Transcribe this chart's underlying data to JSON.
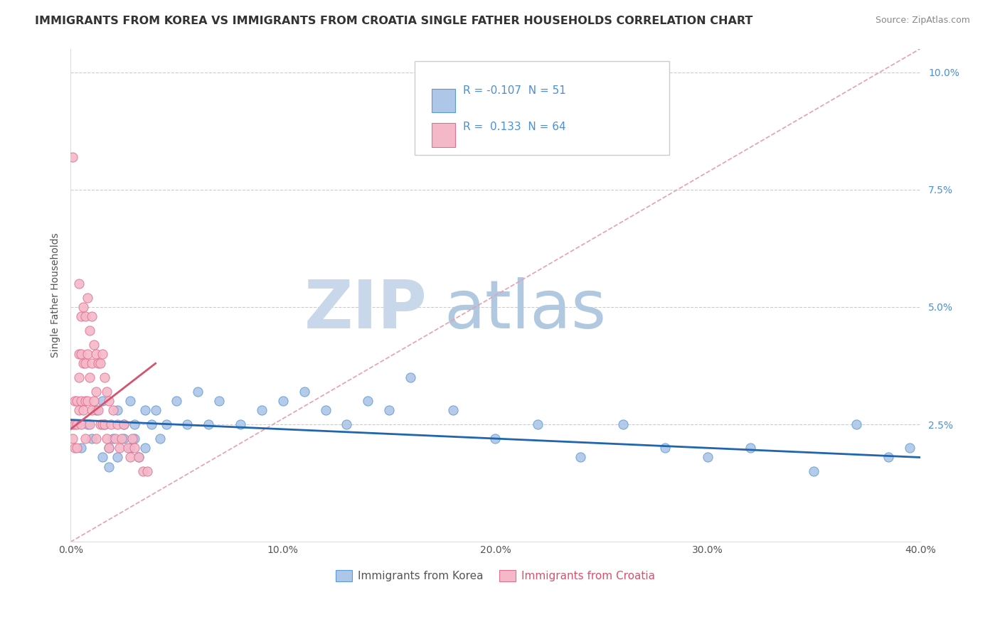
{
  "title": "IMMIGRANTS FROM KOREA VS IMMIGRANTS FROM CROATIA SINGLE FATHER HOUSEHOLDS CORRELATION CHART",
  "source": "Source: ZipAtlas.com",
  "xlabel_korea": "Immigrants from Korea",
  "xlabel_croatia": "Immigrants from Croatia",
  "ylabel": "Single Father Households",
  "xlim": [
    0.0,
    0.4
  ],
  "ylim": [
    0.0,
    0.105
  ],
  "xticks": [
    0.0,
    0.1,
    0.2,
    0.3,
    0.4
  ],
  "xtick_labels": [
    "0.0%",
    "10.0%",
    "20.0%",
    "30.0%",
    "40.0%"
  ],
  "yticks": [
    0.0,
    0.025,
    0.05,
    0.075,
    0.1
  ],
  "ytick_labels": [
    "",
    "2.5%",
    "5.0%",
    "7.5%",
    "10.0%"
  ],
  "korea_R": -0.107,
  "korea_N": 51,
  "croatia_R": 0.133,
  "croatia_N": 64,
  "korea_color": "#aec6e8",
  "croatia_color": "#f5b8c8",
  "korea_edge_color": "#5b9bd5",
  "croatia_edge_color": "#e07090",
  "korea_line_color": "#2166ac",
  "croatia_line_color": "#d6536d",
  "diagonal_color": "#e8a0b0",
  "watermark_zip": "ZIP",
  "watermark_atlas": "atlas",
  "watermark_color_zip": "#c5d5e8",
  "watermark_color_atlas": "#b8cfe0",
  "title_fontsize": 11.5,
  "axis_label_fontsize": 10,
  "tick_fontsize": 10,
  "korea_scatter_x": [
    0.005,
    0.008,
    0.01,
    0.012,
    0.015,
    0.015,
    0.016,
    0.018,
    0.018,
    0.02,
    0.022,
    0.022,
    0.025,
    0.025,
    0.028,
    0.028,
    0.03,
    0.03,
    0.032,
    0.035,
    0.035,
    0.038,
    0.04,
    0.042,
    0.045,
    0.05,
    0.055,
    0.06,
    0.065,
    0.07,
    0.08,
    0.09,
    0.1,
    0.11,
    0.12,
    0.13,
    0.14,
    0.15,
    0.16,
    0.18,
    0.2,
    0.22,
    0.24,
    0.26,
    0.28,
    0.3,
    0.32,
    0.35,
    0.37,
    0.385,
    0.395
  ],
  "korea_scatter_y": [
    0.02,
    0.025,
    0.022,
    0.028,
    0.018,
    0.03,
    0.025,
    0.02,
    0.016,
    0.022,
    0.028,
    0.018,
    0.025,
    0.022,
    0.03,
    0.02,
    0.025,
    0.022,
    0.018,
    0.028,
    0.02,
    0.025,
    0.028,
    0.022,
    0.025,
    0.03,
    0.025,
    0.032,
    0.025,
    0.03,
    0.025,
    0.028,
    0.03,
    0.032,
    0.028,
    0.025,
    0.03,
    0.028,
    0.035,
    0.028,
    0.022,
    0.025,
    0.018,
    0.025,
    0.02,
    0.018,
    0.02,
    0.015,
    0.025,
    0.018,
    0.02
  ],
  "croatia_scatter_x": [
    0.001,
    0.001,
    0.002,
    0.002,
    0.002,
    0.003,
    0.003,
    0.003,
    0.004,
    0.004,
    0.004,
    0.004,
    0.005,
    0.005,
    0.005,
    0.005,
    0.006,
    0.006,
    0.006,
    0.007,
    0.007,
    0.007,
    0.007,
    0.008,
    0.008,
    0.008,
    0.009,
    0.009,
    0.009,
    0.01,
    0.01,
    0.01,
    0.011,
    0.011,
    0.012,
    0.012,
    0.012,
    0.013,
    0.013,
    0.014,
    0.014,
    0.015,
    0.015,
    0.016,
    0.016,
    0.017,
    0.017,
    0.018,
    0.018,
    0.019,
    0.02,
    0.021,
    0.022,
    0.023,
    0.024,
    0.025,
    0.027,
    0.028,
    0.029,
    0.03,
    0.032,
    0.034,
    0.036,
    0.001
  ],
  "croatia_scatter_y": [
    0.025,
    0.022,
    0.03,
    0.025,
    0.02,
    0.03,
    0.025,
    0.02,
    0.055,
    0.04,
    0.035,
    0.028,
    0.048,
    0.04,
    0.03,
    0.025,
    0.05,
    0.038,
    0.028,
    0.048,
    0.038,
    0.03,
    0.022,
    0.052,
    0.04,
    0.03,
    0.045,
    0.035,
    0.025,
    0.048,
    0.038,
    0.028,
    0.042,
    0.03,
    0.04,
    0.032,
    0.022,
    0.038,
    0.028,
    0.038,
    0.025,
    0.04,
    0.025,
    0.035,
    0.025,
    0.032,
    0.022,
    0.03,
    0.02,
    0.025,
    0.028,
    0.022,
    0.025,
    0.02,
    0.022,
    0.025,
    0.02,
    0.018,
    0.022,
    0.02,
    0.018,
    0.015,
    0.015,
    0.082
  ]
}
